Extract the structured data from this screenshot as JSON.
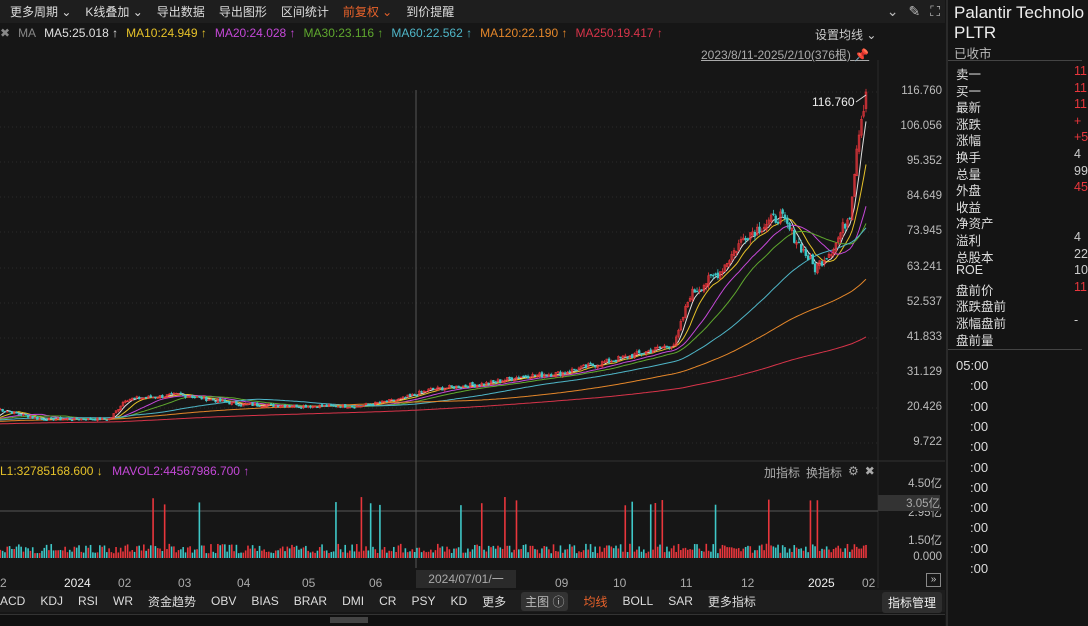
{
  "toolbar": {
    "items": [
      "更多周期 ⌄",
      "K线叠加 ⌄",
      "导出数据",
      "导出图形",
      "区间统计",
      "前复权 ⌄",
      "到价提醒"
    ],
    "active_index": 5
  },
  "ma": {
    "label": "MA",
    "items": [
      {
        "text": "MA5:25.018 ↑",
        "color": "#e0e0e0"
      },
      {
        "text": "MA10:24.949 ↑",
        "color": "#e6c229"
      },
      {
        "text": "MA20:24.028 ↑",
        "color": "#c548d8"
      },
      {
        "text": "MA30:23.116 ↑",
        "color": "#5fa82e"
      },
      {
        "text": "MA60:22.562 ↑",
        "color": "#4fb6c8"
      },
      {
        "text": "MA120:22.190 ↑",
        "color": "#e5872a"
      },
      {
        "text": "MA250:19.417 ↑",
        "color": "#d8344a"
      }
    ],
    "settings": "设置均线 ⌄"
  },
  "range": "2023/8/11-2025/2/10(376根)",
  "price_axis": [
    "116.760",
    "106.056",
    "95.352",
    "84.649",
    "73.945",
    "63.241",
    "52.537",
    "41.833",
    "31.129",
    "20.426",
    "9.722"
  ],
  "price_max_label": "116.760",
  "price_anchors": [
    [
      0,
      20
    ],
    [
      40,
      17
    ],
    [
      110,
      17
    ],
    [
      125,
      23
    ],
    [
      180,
      24.5
    ],
    [
      240,
      21.5
    ],
    [
      300,
      21
    ],
    [
      360,
      21
    ],
    [
      400,
      23
    ],
    [
      430,
      26
    ],
    [
      490,
      28
    ],
    [
      520,
      30
    ],
    [
      560,
      31
    ],
    [
      600,
      34
    ],
    [
      640,
      37
    ],
    [
      675,
      40
    ],
    [
      690,
      55
    ],
    [
      720,
      62
    ],
    [
      745,
      73
    ],
    [
      780,
      79
    ],
    [
      800,
      70
    ],
    [
      815,
      63
    ],
    [
      835,
      70
    ],
    [
      850,
      80
    ],
    [
      858,
      104
    ],
    [
      866,
      116.76
    ]
  ],
  "volume": {
    "mavol1": "L1:32785168.600 ↓",
    "mavol2": "MAVOL2:44567986.700 ↑",
    "axis": [
      "4.50亿",
      "2.95亿",
      "1.50亿",
      "0.000"
    ],
    "cursor_value": "3.05亿",
    "add": "加指标",
    "switch": "换指标"
  },
  "x_axis": [
    "2",
    "2024",
    "02",
    "03",
    "04",
    "05",
    "06",
    "09",
    "10",
    "11",
    "12",
    "2025",
    "02"
  ],
  "crosshair_date": "2024/07/01/一",
  "indicators": [
    "ACD",
    "KDJ",
    "RSI",
    "WR",
    "资金趋势",
    "OBV",
    "BIAS",
    "BRAR",
    "DMI",
    "CR",
    "PSY",
    "KD",
    "更多",
    "主图 ⓘ",
    "均线",
    "BOLL",
    "SAR",
    "更多指标"
  ],
  "indicator_manage": "指标管理",
  "quote": {
    "name": "Palantir Technolo",
    "symbol": "PLTR",
    "status": "已收市",
    "rows": [
      [
        "卖一",
        "11"
      ],
      [
        "买一",
        "11"
      ],
      [
        "最新",
        "11"
      ],
      [
        "涨跌",
        "+"
      ],
      [
        "涨幅",
        "+5"
      ],
      [
        "换手",
        "4"
      ],
      [
        "总量",
        "99"
      ],
      [
        "外盘",
        "45"
      ],
      [
        "收益",
        ""
      ],
      [
        "净资产",
        ""
      ],
      [
        "溢利",
        "4"
      ],
      [
        "总股本",
        "22"
      ],
      [
        "ROE",
        "10"
      ],
      [
        "盘前价",
        "11"
      ],
      [
        "涨跌盘前",
        ""
      ],
      [
        "涨幅盘前",
        "-"
      ],
      [
        "盘前量",
        ""
      ]
    ],
    "red_rows": [
      0,
      1,
      2,
      3,
      4,
      7,
      13
    ]
  },
  "times": [
    "05:00",
    ":00",
    ":00",
    ":00",
    ":00",
    ":00",
    ":00",
    ":00",
    ":00",
    ":00",
    ":00"
  ],
  "colors": {
    "up": "#e8363c",
    "down": "#3fc7c7",
    "accent": "#e8622a"
  }
}
